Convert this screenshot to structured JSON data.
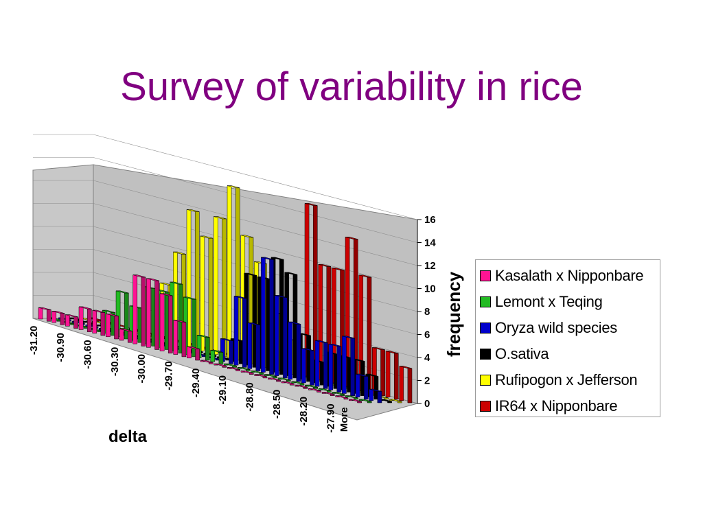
{
  "slide": {
    "title": "Survey of variability in rice"
  },
  "chart_data": {
    "type": "bar",
    "subtype": "3d-clustered-column",
    "xlabel": "delta",
    "ylabel": "frequency",
    "ylim": [
      0,
      16
    ],
    "yticks": [
      "0",
      "2",
      "4",
      "6",
      "8",
      "10",
      "12",
      "14",
      "16"
    ],
    "categories": [
      "-31.20",
      "-31.05",
      "-30.90",
      "-30.75",
      "-30.60",
      "-30.45",
      "-30.30",
      "-30.15",
      "-30.00",
      "-29.85",
      "-29.70",
      "-29.55",
      "-29.40",
      "-29.25",
      "-29.10",
      "-28.95",
      "-28.80",
      "-28.65",
      "-28.50",
      "-28.35",
      "-28.20",
      "-28.05",
      "-27.90",
      "More"
    ],
    "category_tick_labels": [
      "-31.20",
      "-30.90",
      "-30.60",
      "-30.30",
      "-30.00",
      "-29.70",
      "-29.40",
      "-29.10",
      "-28.80",
      "-28.50",
      "-28.20",
      "-27.90",
      "More"
    ],
    "grid": true,
    "legend_position": "right",
    "series": [
      {
        "name": "Kasalath x Nipponbare",
        "color": "#ff1493",
        "values": [
          1,
          1,
          1,
          2,
          2,
          2,
          1,
          6,
          6,
          5,
          3,
          1,
          0,
          0,
          0,
          0,
          0,
          0,
          0,
          0,
          0,
          0,
          0,
          0
        ]
      },
      {
        "name": "Lemont x Teqing",
        "color": "#22bb22",
        "values": [
          0,
          0,
          0,
          0,
          2,
          4,
          3,
          5,
          5,
          6,
          5,
          2,
          1,
          0,
          0,
          0,
          0,
          0,
          0,
          0,
          0,
          0,
          0,
          0
        ]
      },
      {
        "name": "Oryza  wild species",
        "color": "#0000cc",
        "values": [
          0,
          0,
          0,
          0,
          0,
          0,
          0,
          0,
          0,
          0,
          0,
          0,
          2,
          6,
          4,
          10,
          7,
          5,
          3,
          4,
          4,
          5,
          2,
          1
        ]
      },
      {
        "name": "O.sativa",
        "color": "#000000",
        "values": [
          0,
          0,
          0,
          0,
          0,
          0,
          0,
          0,
          0,
          0,
          0,
          0,
          2,
          8,
          8,
          10,
          9,
          4,
          2,
          3,
          3,
          3,
          2,
          0
        ]
      },
      {
        "name": "Rufipogon x Jefferson",
        "color": "#ffff00",
        "values": [
          0,
          0,
          1,
          0,
          0,
          0,
          5,
          8,
          12,
          10,
          12,
          15,
          11,
          9,
          5,
          3,
          0,
          0,
          0,
          0,
          0,
          0,
          0,
          0
        ]
      },
      {
        "name": "IR64 x Nipponbare",
        "color": "#cc0000",
        "values": [
          0,
          0,
          0,
          0,
          0,
          0,
          0,
          0,
          0,
          0,
          0,
          0,
          0,
          0,
          0,
          0,
          15,
          10,
          10,
          13,
          10,
          4,
          4,
          3
        ]
      }
    ]
  }
}
